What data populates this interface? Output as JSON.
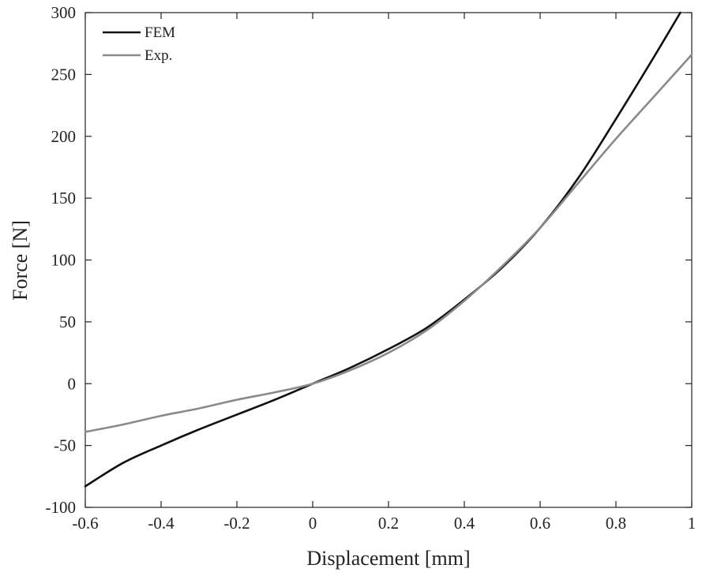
{
  "chart_data": {
    "type": "line",
    "xlabel": "Displacement [mm]",
    "ylabel": "Force [N]",
    "xlim": [
      -0.6,
      1
    ],
    "ylim": [
      -100,
      300
    ],
    "xticks": [
      "-0.6",
      "-0.4",
      "-0.2",
      "0",
      "0.2",
      "0.4",
      "0.6",
      "0.8",
      "1"
    ],
    "yticks": [
      "-100",
      "-50",
      "0",
      "50",
      "100",
      "150",
      "200",
      "250",
      "300"
    ],
    "grid": false,
    "legend_position": "top-left",
    "series": [
      {
        "name": "FEM",
        "color": "#111111",
        "x": [
          -0.6,
          -0.5,
          -0.4,
          -0.3,
          -0.2,
          -0.1,
          0,
          0.1,
          0.2,
          0.3,
          0.4,
          0.5,
          0.6,
          0.7,
          0.8,
          0.9,
          0.97
        ],
        "y": [
          -83,
          -64,
          -50,
          -37,
          -25,
          -13,
          0,
          13,
          28,
          45,
          68,
          94,
          126,
          166,
          214,
          264,
          300
        ]
      },
      {
        "name": "Exp.",
        "color": "#8a8a8a",
        "x": [
          -0.6,
          -0.5,
          -0.4,
          -0.3,
          -0.2,
          -0.1,
          0,
          0.1,
          0.2,
          0.3,
          0.4,
          0.5,
          0.6,
          0.7,
          0.8,
          0.9,
          1
        ],
        "y": [
          -39,
          -33,
          -26,
          -20,
          -13,
          -7,
          0,
          11,
          25,
          43,
          67,
          95,
          126,
          162,
          198,
          232,
          266
        ]
      }
    ]
  }
}
